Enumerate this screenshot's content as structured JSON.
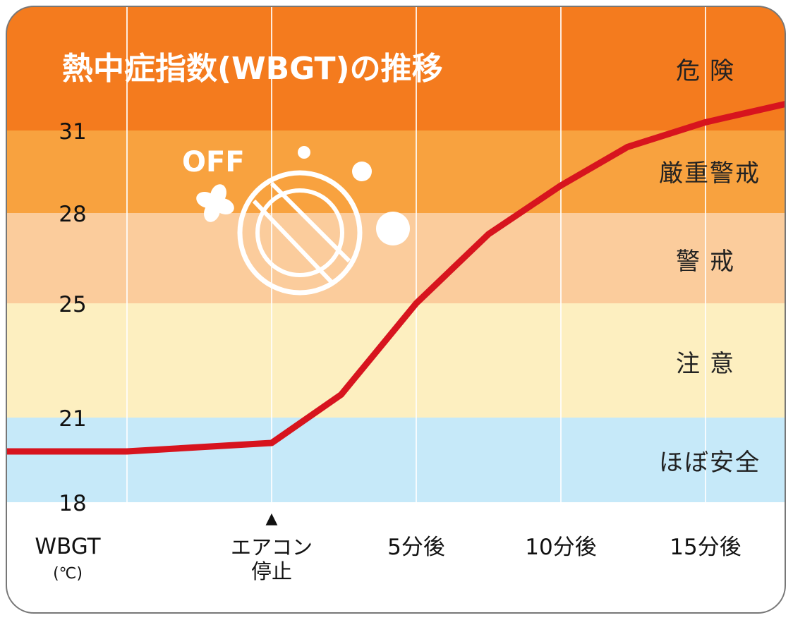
{
  "chart_data": {
    "type": "line",
    "title": "熱中症指数(WBGT)の推移",
    "ylabel": "WBGT",
    "yunit": "(℃)",
    "yticks": [
      18,
      21,
      25,
      28,
      31
    ],
    "ylim": [
      18,
      35.5
    ],
    "xlabel": "",
    "xlim": [
      -9.2,
      17.9
    ],
    "xticks": [
      {
        "value": 0,
        "label": "エアコン\n停止",
        "marker": "▲"
      },
      {
        "value": 5,
        "label": "5分後"
      },
      {
        "value": 10,
        "label": "10分後"
      },
      {
        "value": 15,
        "label": "15分後"
      }
    ],
    "x_gridlines": [
      -5,
      0,
      5,
      10,
      15
    ],
    "bands": [
      {
        "label": "危険",
        "from": 31,
        "to": 35.5,
        "color": "#F47B1E"
      },
      {
        "label": "厳重警戒",
        "from": 28,
        "to": 31,
        "color": "#F8A23F"
      },
      {
        "label": "警戒",
        "from": 25,
        "to": 28,
        "color": "#FBCC9C"
      },
      {
        "label": "注意",
        "from": 21,
        "to": 25,
        "color": "#FDEFC0"
      },
      {
        "label": "ほぼ安全",
        "from": 18,
        "to": 21,
        "color": "#C6E9F9"
      }
    ],
    "series": [
      {
        "name": "WBGT",
        "color": "#D7141E",
        "x": [
          -9.2,
          -5,
          0,
          2.4,
          5,
          7.5,
          10,
          12.3,
          15,
          17.9
        ],
        "y": [
          19.8,
          19.8,
          20.1,
          21.8,
          25.0,
          27.3,
          29.0,
          30.4,
          31.3,
          32.0
        ]
      }
    ],
    "annotation": {
      "text": "OFF",
      "icon": "air-conditioner-off-icon"
    },
    "grid": true,
    "legend": "none"
  }
}
